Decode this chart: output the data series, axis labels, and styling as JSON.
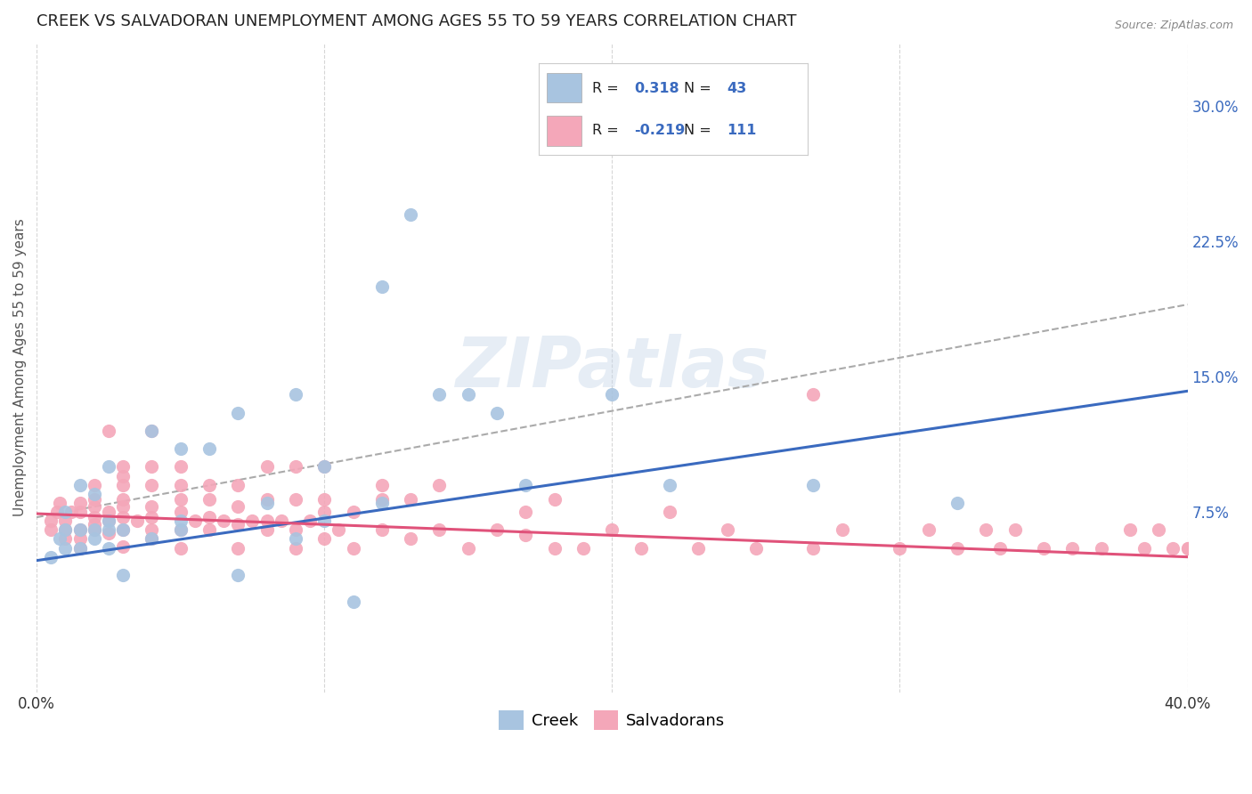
{
  "title": "CREEK VS SALVADORAN UNEMPLOYMENT AMONG AGES 55 TO 59 YEARS CORRELATION CHART",
  "source": "Source: ZipAtlas.com",
  "ylabel": "Unemployment Among Ages 55 to 59 years",
  "xlim": [
    0.0,
    0.4
  ],
  "ylim": [
    -0.025,
    0.335
  ],
  "yticks": [
    0.075,
    0.15,
    0.225,
    0.3
  ],
  "ytick_labels": [
    "7.5%",
    "15.0%",
    "22.5%",
    "30.0%"
  ],
  "xticks": [
    0.0,
    0.1,
    0.2,
    0.3,
    0.4
  ],
  "xtick_labels": [
    "0.0%",
    "",
    "",
    "",
    "40.0%"
  ],
  "creek_color": "#a8c4e0",
  "salvadoran_color": "#f4a7b9",
  "creek_line_color": "#3a6abf",
  "salvadoran_line_color": "#e0527a",
  "creek_R": 0.318,
  "creek_N": 43,
  "salvadoran_R": -0.219,
  "salvadoran_N": 111,
  "background_color": "#ffffff",
  "grid_color": "#cccccc",
  "creek_line_start_y": 0.048,
  "creek_line_end_y": 0.142,
  "salvadoran_line_start_y": 0.074,
  "salvadoran_line_end_y": 0.05,
  "dash_line_start_x": 0.0,
  "dash_line_end_x": 0.4,
  "dash_line_start_y": 0.072,
  "dash_line_end_y": 0.19,
  "creek_x": [
    0.005,
    0.008,
    0.01,
    0.01,
    0.01,
    0.015,
    0.015,
    0.015,
    0.02,
    0.02,
    0.02,
    0.025,
    0.025,
    0.025,
    0.025,
    0.03,
    0.03,
    0.04,
    0.04,
    0.05,
    0.05,
    0.05,
    0.06,
    0.07,
    0.07,
    0.08,
    0.09,
    0.09,
    0.1,
    0.1,
    0.11,
    0.12,
    0.12,
    0.13,
    0.14,
    0.15,
    0.16,
    0.17,
    0.2,
    0.21,
    0.22,
    0.27,
    0.32
  ],
  "creek_y": [
    0.05,
    0.06,
    0.055,
    0.065,
    0.075,
    0.055,
    0.065,
    0.09,
    0.06,
    0.065,
    0.085,
    0.055,
    0.065,
    0.07,
    0.1,
    0.065,
    0.04,
    0.12,
    0.06,
    0.07,
    0.065,
    0.11,
    0.11,
    0.04,
    0.13,
    0.08,
    0.06,
    0.14,
    0.07,
    0.1,
    0.025,
    0.08,
    0.2,
    0.24,
    0.14,
    0.14,
    0.13,
    0.09,
    0.14,
    0.29,
    0.09,
    0.09,
    0.08
  ],
  "salvadoran_x": [
    0.005,
    0.005,
    0.007,
    0.008,
    0.01,
    0.01,
    0.01,
    0.012,
    0.015,
    0.015,
    0.015,
    0.015,
    0.015,
    0.02,
    0.02,
    0.02,
    0.02,
    0.02,
    0.02,
    0.025,
    0.025,
    0.025,
    0.025,
    0.03,
    0.03,
    0.03,
    0.03,
    0.03,
    0.03,
    0.03,
    0.03,
    0.035,
    0.04,
    0.04,
    0.04,
    0.04,
    0.04,
    0.04,
    0.04,
    0.05,
    0.05,
    0.05,
    0.05,
    0.05,
    0.05,
    0.055,
    0.06,
    0.06,
    0.06,
    0.06,
    0.065,
    0.07,
    0.07,
    0.07,
    0.07,
    0.075,
    0.08,
    0.08,
    0.08,
    0.08,
    0.085,
    0.09,
    0.09,
    0.09,
    0.09,
    0.095,
    0.1,
    0.1,
    0.1,
    0.1,
    0.105,
    0.11,
    0.11,
    0.12,
    0.12,
    0.12,
    0.13,
    0.13,
    0.14,
    0.14,
    0.15,
    0.16,
    0.17,
    0.17,
    0.18,
    0.18,
    0.19,
    0.2,
    0.21,
    0.22,
    0.23,
    0.24,
    0.25,
    0.27,
    0.27,
    0.28,
    0.3,
    0.31,
    0.32,
    0.33,
    0.335,
    0.34,
    0.35,
    0.36,
    0.37,
    0.38,
    0.385,
    0.39,
    0.395,
    0.4,
    0.4
  ],
  "salvadoran_y": [
    0.065,
    0.07,
    0.075,
    0.08,
    0.06,
    0.065,
    0.07,
    0.075,
    0.055,
    0.06,
    0.065,
    0.075,
    0.08,
    0.065,
    0.068,
    0.072,
    0.078,
    0.082,
    0.09,
    0.063,
    0.07,
    0.075,
    0.12,
    0.056,
    0.065,
    0.072,
    0.078,
    0.082,
    0.09,
    0.095,
    0.1,
    0.07,
    0.06,
    0.065,
    0.072,
    0.078,
    0.09,
    0.1,
    0.12,
    0.055,
    0.065,
    0.075,
    0.082,
    0.09,
    0.1,
    0.07,
    0.065,
    0.072,
    0.082,
    0.09,
    0.07,
    0.055,
    0.068,
    0.078,
    0.09,
    0.07,
    0.065,
    0.07,
    0.082,
    0.1,
    0.07,
    0.055,
    0.065,
    0.082,
    0.1,
    0.07,
    0.06,
    0.075,
    0.082,
    0.1,
    0.065,
    0.055,
    0.075,
    0.065,
    0.082,
    0.09,
    0.06,
    0.082,
    0.065,
    0.09,
    0.055,
    0.065,
    0.062,
    0.075,
    0.055,
    0.082,
    0.055,
    0.065,
    0.055,
    0.075,
    0.055,
    0.065,
    0.055,
    0.14,
    0.055,
    0.065,
    0.055,
    0.065,
    0.055,
    0.065,
    0.055,
    0.065,
    0.055,
    0.055,
    0.055,
    0.065,
    0.055,
    0.065,
    0.055,
    0.055,
    0.055
  ]
}
